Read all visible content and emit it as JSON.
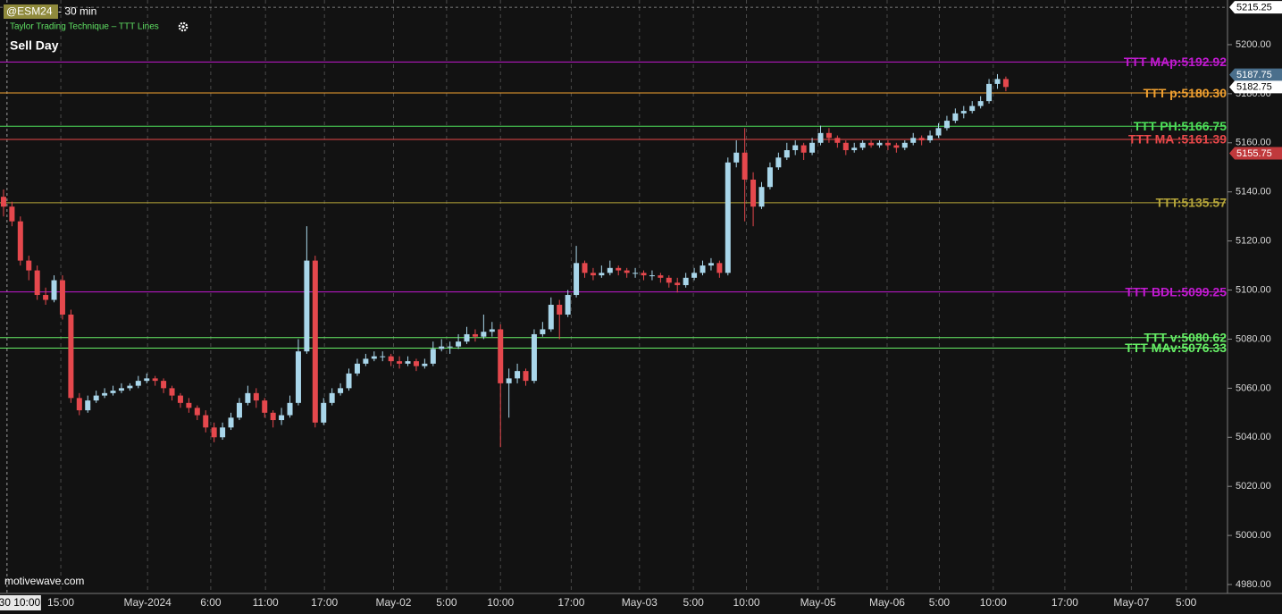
{
  "chart_data": {
    "type": "candlestick",
    "symbol": "@ESM24",
    "interval": " - 30 min",
    "study": "Taylor Trading Technique – TTT Lines",
    "signal": "Sell Day",
    "watermark": "motivewave.com",
    "up_color": "#a9d6ea",
    "down_color": "#e5484d",
    "ylim": [
      4976,
      5218.2
    ],
    "yticks": [
      {
        "value": 4980,
        "label": "4980.00"
      },
      {
        "value": 5000,
        "label": "5000.00"
      },
      {
        "value": 5020,
        "label": "5020.00"
      },
      {
        "value": 5040,
        "label": "5040.00"
      },
      {
        "value": 5060,
        "label": "5060.00"
      },
      {
        "value": 5080,
        "label": "5080.00"
      },
      {
        "value": 5100,
        "label": "5100.00"
      },
      {
        "value": 5120,
        "label": "5120.00"
      },
      {
        "value": 5140,
        "label": "5140.00"
      },
      {
        "value": 5160,
        "label": "5160.00"
      },
      {
        "value": 5180,
        "label": "5180.00"
      },
      {
        "value": 5200,
        "label": "5200.00"
      }
    ],
    "xlim": [
      -0.42,
      145.1
    ],
    "xticks": [
      {
        "value": 1.9,
        "label": "30 10:00"
      },
      {
        "value": 6.8,
        "label": "15:00"
      },
      {
        "value": 17.1,
        "label": "May-2024"
      },
      {
        "value": 24.6,
        "label": "6:00"
      },
      {
        "value": 31.1,
        "label": "11:00"
      },
      {
        "value": 38.1,
        "label": "17:00"
      },
      {
        "value": 46.3,
        "label": "May-02"
      },
      {
        "value": 52.6,
        "label": "5:00"
      },
      {
        "value": 59.0,
        "label": "10:00"
      },
      {
        "value": 67.4,
        "label": "17:00"
      },
      {
        "value": 75.5,
        "label": "May-03"
      },
      {
        "value": 81.9,
        "label": "5:00"
      },
      {
        "value": 88.2,
        "label": "10:00"
      },
      {
        "value": 96.7,
        "label": "May-05"
      },
      {
        "value": 104.9,
        "label": "May-06"
      },
      {
        "value": 111.1,
        "label": "5:00"
      },
      {
        "value": 117.5,
        "label": "10:00"
      },
      {
        "value": 126.0,
        "label": "17:00"
      },
      {
        "value": 133.9,
        "label": "May-07"
      },
      {
        "value": 140.4,
        "label": "5:00"
      }
    ],
    "levels": [
      {
        "name": "TTT MAp:5192.92",
        "value": 5192.92,
        "color": "#c21ad1"
      },
      {
        "name": "TTT p:5180.30",
        "value": 5180.3,
        "color": "#f0a030"
      },
      {
        "name": "TTT PH:5166.75",
        "value": 5166.75,
        "color": "#4ee05a"
      },
      {
        "name": "TTT MA :5161.39",
        "value": 5161.39,
        "color": "#e8484a"
      },
      {
        "name": "TTT:5135.57",
        "value": 5135.57,
        "color": "#b5a53a"
      },
      {
        "name": "TTT BDL:5099.25",
        "value": 5099.25,
        "color": "#c21ad1"
      },
      {
        "name": "TTT v:5080.62",
        "value": 5080.62,
        "color": "#66ee66"
      },
      {
        "name": "TTT MAv:5076.33",
        "value": 5076.33,
        "color": "#66ee66"
      }
    ],
    "price_markers": [
      {
        "value": 5215.25,
        "color": "#ffffff",
        "text_color": "#000000"
      },
      {
        "value": 5187.75,
        "color": "#4a6f8c",
        "text_color": "#ffffff"
      },
      {
        "value": 5182.75,
        "color": "#ffffff",
        "text_color": "#000000"
      },
      {
        "value": 5155.75,
        "color": "#c0393c",
        "text_color": "#ffffff"
      }
    ],
    "ohlc": [
      [
        5138,
        5141,
        5130,
        5134
      ],
      [
        5134,
        5136,
        5126,
        5128
      ],
      [
        5128,
        5130,
        5110,
        5112
      ],
      [
        5112,
        5114,
        5104,
        5108
      ],
      [
        5108,
        5110,
        5096,
        5098
      ],
      [
        5098,
        5101,
        5094,
        5096
      ],
      [
        5096,
        5106,
        5095,
        5104
      ],
      [
        5104,
        5106,
        5088,
        5090
      ],
      [
        5090,
        5092,
        5054,
        5056
      ],
      [
        5056,
        5058,
        5049,
        5051
      ],
      [
        5051,
        5057,
        5050,
        5055
      ],
      [
        5055,
        5059,
        5054,
        5057
      ],
      [
        5057,
        5060,
        5056,
        5058
      ],
      [
        5058,
        5061,
        5057,
        5059
      ],
      [
        5059,
        5062,
        5058,
        5060
      ],
      [
        5060,
        5062,
        5059,
        5061
      ],
      [
        5061,
        5065,
        5060,
        5063
      ],
      [
        5063,
        5066,
        5062,
        5064
      ],
      [
        5064,
        5065,
        5061,
        5063
      ],
      [
        5063,
        5064,
        5058,
        5060
      ],
      [
        5060,
        5061,
        5055,
        5057
      ],
      [
        5057,
        5058,
        5052,
        5054
      ],
      [
        5054,
        5056,
        5050,
        5052
      ],
      [
        5052,
        5053,
        5047,
        5049
      ],
      [
        5049,
        5051,
        5042,
        5044
      ],
      [
        5044,
        5046,
        5038,
        5040
      ],
      [
        5040,
        5046,
        5039,
        5044
      ],
      [
        5044,
        5050,
        5043,
        5048
      ],
      [
        5048,
        5056,
        5047,
        5054
      ],
      [
        5054,
        5061,
        5053,
        5058
      ],
      [
        5058,
        5060,
        5052,
        5055
      ],
      [
        5055,
        5056,
        5048,
        5050
      ],
      [
        5050,
        5051,
        5044,
        5047
      ],
      [
        5047,
        5052,
        5045,
        5049
      ],
      [
        5049,
        5057,
        5048,
        5054
      ],
      [
        5054,
        5080,
        5053,
        5075
      ],
      [
        5075,
        5126,
        5074,
        5112
      ],
      [
        5112,
        5114,
        5044,
        5046
      ],
      [
        5046,
        5056,
        5045,
        5054
      ],
      [
        5054,
        5060,
        5053,
        5058
      ],
      [
        5058,
        5062,
        5057,
        5060
      ],
      [
        5060,
        5068,
        5059,
        5066
      ],
      [
        5066,
        5072,
        5065,
        5070
      ],
      [
        5070,
        5074,
        5069,
        5072
      ],
      [
        5072,
        5075,
        5071,
        5073
      ],
      [
        5073,
        5075,
        5071,
        5073
      ],
      [
        5073,
        5074,
        5069,
        5071
      ],
      [
        5071,
        5073,
        5068,
        5070
      ],
      [
        5070,
        5073,
        5069,
        5071
      ],
      [
        5071,
        5072,
        5067,
        5069
      ],
      [
        5069,
        5072,
        5068,
        5070
      ],
      [
        5070,
        5079,
        5069,
        5076
      ],
      [
        5076,
        5080,
        5075,
        5077
      ],
      [
        5077,
        5079,
        5074,
        5077
      ],
      [
        5077,
        5082,
        5076,
        5079
      ],
      [
        5079,
        5085,
        5078,
        5082
      ],
      [
        5082,
        5084,
        5079,
        5081
      ],
      [
        5081,
        5090,
        5080,
        5083
      ],
      [
        5083,
        5087,
        5081,
        5084
      ],
      [
        5084,
        5086,
        5036,
        5062
      ],
      [
        5062,
        5068,
        5048,
        5064
      ],
      [
        5064,
        5070,
        5062,
        5067
      ],
      [
        5067,
        5068,
        5061,
        5063
      ],
      [
        5063,
        5084,
        5062,
        5082
      ],
      [
        5082,
        5087,
        5081,
        5084
      ],
      [
        5084,
        5097,
        5083,
        5094
      ],
      [
        5094,
        5096,
        5080,
        5090
      ],
      [
        5090,
        5100,
        5089,
        5098
      ],
      [
        5098,
        5118,
        5097,
        5111
      ],
      [
        5111,
        5112,
        5105,
        5107
      ],
      [
        5107,
        5109,
        5104,
        5106
      ],
      [
        5106,
        5110,
        5105,
        5107
      ],
      [
        5107,
        5112,
        5106,
        5109
      ],
      [
        5109,
        5110,
        5106,
        5108
      ],
      [
        5108,
        5109,
        5105,
        5107
      ],
      [
        5107,
        5109,
        5105,
        5107
      ],
      [
        5107,
        5108,
        5104,
        5106
      ],
      [
        5106,
        5108,
        5104,
        5106
      ],
      [
        5106,
        5107,
        5103,
        5105
      ],
      [
        5105,
        5106,
        5101,
        5103
      ],
      [
        5103,
        5105,
        5099,
        5102
      ],
      [
        5102,
        5107,
        5101,
        5105
      ],
      [
        5105,
        5109,
        5104,
        5107
      ],
      [
        5107,
        5112,
        5106,
        5110
      ],
      [
        5110,
        5113,
        5108,
        5111
      ],
      [
        5111,
        5112,
        5105,
        5107
      ],
      [
        5107,
        5154,
        5106,
        5152
      ],
      [
        5152,
        5161,
        5150,
        5156
      ],
      [
        5156,
        5166,
        5128,
        5145
      ],
      [
        5145,
        5148,
        5126,
        5134
      ],
      [
        5134,
        5144,
        5133,
        5142
      ],
      [
        5142,
        5152,
        5141,
        5150
      ],
      [
        5150,
        5156,
        5149,
        5154
      ],
      [
        5154,
        5160,
        5153,
        5157
      ],
      [
        5157,
        5161,
        5155,
        5159
      ],
      [
        5159,
        5160,
        5153,
        5156
      ],
      [
        5156,
        5162,
        5155,
        5160
      ],
      [
        5160,
        5167,
        5159,
        5164
      ],
      [
        5164,
        5166,
        5160,
        5162
      ],
      [
        5162,
        5163,
        5158,
        5160
      ],
      [
        5160,
        5161,
        5155,
        5157
      ],
      [
        5157,
        5160,
        5156,
        5158
      ],
      [
        5158,
        5161,
        5157,
        5160
      ],
      [
        5160,
        5161,
        5158,
        5159
      ],
      [
        5159,
        5161,
        5158,
        5160
      ],
      [
        5160,
        5161,
        5157,
        5159
      ],
      [
        5159,
        5160,
        5156,
        5158
      ],
      [
        5158,
        5161,
        5157,
        5160
      ],
      [
        5160,
        5164,
        5159,
        5162
      ],
      [
        5162,
        5163,
        5159,
        5161
      ],
      [
        5161,
        5165,
        5160,
        5163
      ],
      [
        5163,
        5168,
        5162,
        5166
      ],
      [
        5166,
        5171,
        5165,
        5169
      ],
      [
        5169,
        5174,
        5168,
        5172
      ],
      [
        5172,
        5175,
        5170,
        5173
      ],
      [
        5173,
        5177,
        5172,
        5175
      ],
      [
        5175,
        5179,
        5174,
        5177
      ],
      [
        5177,
        5186,
        5176,
        5184
      ],
      [
        5184,
        5188,
        5182,
        5186
      ],
      [
        5186,
        5187,
        5181,
        5182.75
      ]
    ]
  }
}
